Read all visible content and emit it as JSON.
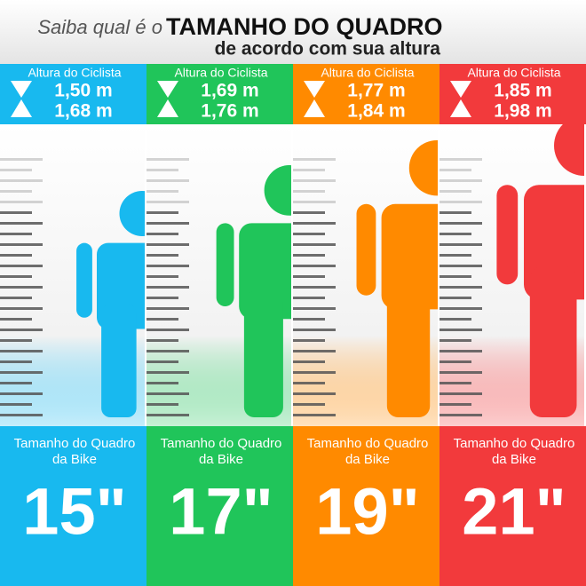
{
  "header": {
    "title_prefix": "Saiba qual é o",
    "title_main": "TAMANHO DO QUADRO",
    "subtitle": "de acordo com sua altura"
  },
  "columns": [
    {
      "color": "#18b9ef",
      "label": "Altura do Ciclista",
      "min": "1,50 m",
      "max": "1,68 m",
      "frame_label_1": "Tamanho do Quadro",
      "frame_label_2": "da Bike",
      "size": "15\""
    },
    {
      "color": "#20c55a",
      "label": "Altura do Ciclista",
      "min": "1,69 m",
      "max": "1,76 m",
      "frame_label_1": "Tamanho do Quadro",
      "frame_label_2": "da Bike",
      "size": "17\""
    },
    {
      "color": "#ff8a00",
      "label": "Altura do Ciclista",
      "min": "1,77 m",
      "max": "1,84 m",
      "frame_label_1": "Tamanho do Quadro",
      "frame_label_2": "da Bike",
      "size": "19\""
    },
    {
      "color": "#f23a3c",
      "label": "Altura do Ciclista",
      "min": "1,85 m",
      "max": "1,98 m",
      "frame_label_1": "Tamanho do Quadro",
      "frame_label_2": "da Bike",
      "size": "21\""
    }
  ]
}
